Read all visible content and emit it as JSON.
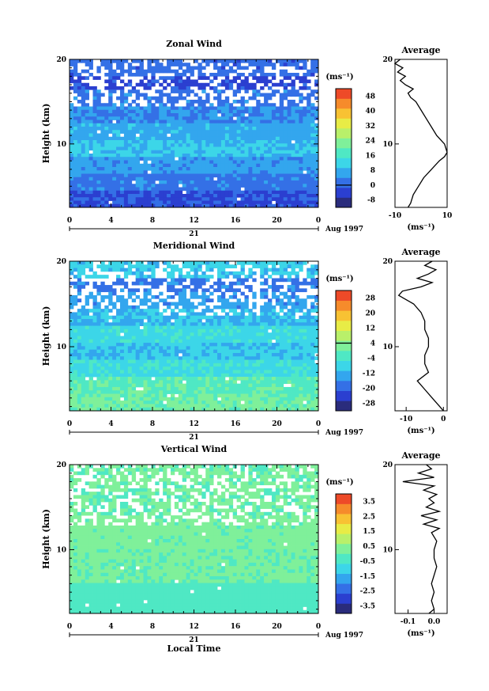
{
  "chart_data": [
    {
      "type": "heatmap",
      "title": "Zonal Wind",
      "ylabel": "Height (km)",
      "x_ticks": [
        "0",
        "4",
        "8",
        "12",
        "16",
        "20",
        "0"
      ],
      "y_ticks": [
        "10",
        "20"
      ],
      "xlim": [
        0,
        24
      ],
      "ylim": [
        2.5,
        20
      ],
      "date_label": "21",
      "month_label": "Aug 1997",
      "colorbar": {
        "unit": "(ms⁻¹)",
        "ticks": [
          "-8",
          "0",
          "8",
          "16",
          "24",
          "32",
          "40",
          "48"
        ],
        "range": [
          -12,
          52
        ],
        "marked": "0"
      },
      "bands": [
        {
          "h0": 2.5,
          "h1": 4.5,
          "value": -2
        },
        {
          "h0": 4.5,
          "h1": 6.5,
          "value": 2
        },
        {
          "h0": 6.5,
          "h1": 8.5,
          "value": 6
        },
        {
          "h0": 8.5,
          "h1": 10.5,
          "value": 10
        },
        {
          "h0": 10.5,
          "h1": 12.5,
          "value": 7
        },
        {
          "h0": 12.5,
          "h1": 14.5,
          "value": 4
        },
        {
          "h0": 14.5,
          "h1": 16.5,
          "value": 2
        },
        {
          "h0": 16.5,
          "h1": 18.0,
          "value": -3
        },
        {
          "h0": 18.0,
          "h1": 19.5,
          "value": 1
        }
      ],
      "missing_height_range": [
        14.5,
        19.5
      ],
      "average": {
        "title": "Average",
        "xlabel": "(ms⁻¹)",
        "x_ticks": [
          "-10",
          "10"
        ],
        "y_ticks": [
          "10",
          "20"
        ],
        "xlim": [
          -10,
          10
        ],
        "height": [
          2.5,
          3,
          4,
          5,
          6,
          7,
          8,
          8.5,
          9,
          10,
          11,
          12,
          13,
          14,
          15,
          15.5,
          16,
          16.5,
          17,
          17.5,
          18,
          18.5,
          19,
          19.5,
          20
        ],
        "value": [
          -5,
          -4,
          -3,
          -1,
          1,
          4,
          7,
          9,
          10,
          9,
          6,
          4,
          2,
          0,
          -2,
          -4,
          -5,
          -3,
          -6,
          -8,
          -6,
          -9,
          -7,
          -10,
          -8
        ]
      }
    },
    {
      "type": "heatmap",
      "title": "Meridional Wind",
      "ylabel": "Height (km)",
      "x_ticks": [
        "0",
        "4",
        "8",
        "12",
        "16",
        "20",
        "0"
      ],
      "y_ticks": [
        "10",
        "20"
      ],
      "xlim": [
        0,
        24
      ],
      "ylim": [
        2.5,
        20
      ],
      "date_label": "21",
      "month_label": "Aug 1997",
      "colorbar": {
        "unit": "(ms⁻¹)",
        "ticks": [
          "-28",
          "-20",
          "-12",
          "-4",
          "4",
          "12",
          "20",
          "28"
        ],
        "range": [
          -32,
          32
        ],
        "marked": "4"
      },
      "bands": [
        {
          "h0": 2.5,
          "h1": 4.5,
          "value": 1
        },
        {
          "h0": 4.5,
          "h1": 6.5,
          "value": -1
        },
        {
          "h0": 6.5,
          "h1": 8.5,
          "value": -6
        },
        {
          "h0": 8.5,
          "h1": 10.5,
          "value": -10
        },
        {
          "h0": 10.5,
          "h1": 12.5,
          "value": -7
        },
        {
          "h0": 12.5,
          "h1": 14.5,
          "value": -11
        },
        {
          "h0": 14.5,
          "h1": 16.5,
          "value": -14
        },
        {
          "h0": 16.5,
          "h1": 18.0,
          "value": -18
        },
        {
          "h0": 18.0,
          "h1": 19.5,
          "value": -9
        }
      ],
      "missing_height_range": [
        13.5,
        19.0
      ],
      "average": {
        "title": "Average",
        "xlabel": "(ms⁻¹)",
        "x_ticks": [
          "-10",
          "0"
        ],
        "y_ticks": [
          "10",
          "20"
        ],
        "xlim": [
          -13,
          1
        ],
        "height": [
          2.5,
          3,
          4,
          5,
          6,
          7,
          8,
          9,
          10,
          11,
          12,
          13,
          14,
          15,
          16,
          16.5,
          17,
          17.5,
          18,
          18.5,
          19,
          19.5,
          20
        ],
        "value": [
          0,
          -1,
          -3,
          -5,
          -7,
          -4,
          -5,
          -5,
          -4,
          -4,
          -5,
          -5,
          -6,
          -8,
          -12,
          -11,
          -6,
          -3,
          -7,
          -4,
          -2,
          -5,
          -3
        ]
      }
    },
    {
      "type": "heatmap",
      "title": "Vertical Wind",
      "ylabel": "Height (km)",
      "xlabel": "Local Time",
      "x_ticks": [
        "0",
        "4",
        "8",
        "12",
        "16",
        "20",
        "0"
      ],
      "y_ticks": [
        "10",
        "20"
      ],
      "xlim": [
        0,
        24
      ],
      "ylim": [
        2.5,
        20
      ],
      "date_label": "21",
      "month_label": "Aug 1997",
      "colorbar": {
        "unit": "(ms⁻¹)",
        "ticks": [
          "-3.5",
          "-2.5",
          "-1.5",
          "-0.5",
          "0.5",
          "1.5",
          "2.5",
          "3.5"
        ],
        "range": [
          -4,
          4
        ],
        "marked": null
      },
      "bands": [
        {
          "h0": 2.5,
          "h1": 6.0,
          "value": -0.3
        },
        {
          "h0": 6.0,
          "h1": 10.0,
          "value": 0.1
        },
        {
          "h0": 10.0,
          "h1": 14.0,
          "value": 0.2
        },
        {
          "h0": 14.0,
          "h1": 17.0,
          "value": 0.05
        },
        {
          "h0": 17.0,
          "h1": 20.0,
          "value": 0.1
        }
      ],
      "missing_height_range": [
        13.0,
        19.0
      ],
      "average": {
        "title": "Average",
        "xlabel": "(ms⁻¹)",
        "x_ticks": [
          "-0.1",
          "0.0"
        ],
        "y_ticks": [
          "10",
          "20"
        ],
        "xlim": [
          -0.15,
          0.05
        ],
        "height": [
          2.5,
          3,
          4,
          5,
          6,
          7,
          8,
          9,
          10,
          11,
          12,
          12.5,
          13,
          13.5,
          14,
          14.5,
          15,
          15.5,
          16,
          16.5,
          17,
          17.5,
          18,
          18.5,
          19,
          19.5,
          20
        ],
        "value": [
          -0.02,
          0.0,
          -0.01,
          0.0,
          -0.01,
          0.0,
          0.01,
          0.0,
          0.0,
          0.01,
          -0.01,
          0.02,
          -0.04,
          0.01,
          -0.05,
          0.02,
          -0.03,
          0.0,
          -0.02,
          0.01,
          -0.04,
          0.0,
          -0.12,
          0.0,
          -0.06,
          -0.01,
          -0.03
        ]
      }
    }
  ],
  "colorscale": [
    "#2a2c7c",
    "#2b3fd0",
    "#3470e6",
    "#33a6ee",
    "#3cd6e8",
    "#4fe8c4",
    "#7ff09a",
    "#b9f06a",
    "#e8ec46",
    "#f8c233",
    "#f68b2b",
    "#ee4a28"
  ]
}
